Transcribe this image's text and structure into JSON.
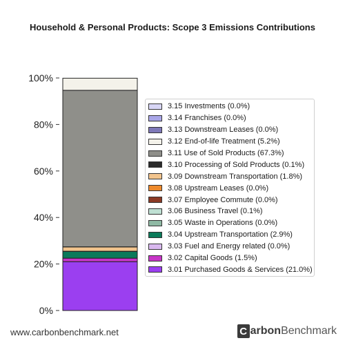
{
  "chart_data": {
    "type": "bar",
    "stacked": true,
    "title": "Household & Personal Products: Scope 3 Emissions Contributions",
    "categories": [
      ""
    ],
    "ylim": [
      0,
      100
    ],
    "yticks": [
      "0%",
      "20%",
      "40%",
      "60%",
      "80%",
      "100%"
    ],
    "legend_position": "right",
    "series": [
      {
        "name": "3.01 Purchased Goods & Services (21.0%)",
        "value": 21.0,
        "color": "#9b3ff0"
      },
      {
        "name": "3.02 Capital Goods (1.5%)",
        "value": 1.5,
        "color": "#c736c7"
      },
      {
        "name": "3.03 Fuel and Energy related (0.0%)",
        "value": 0.0,
        "color": "#d9b8ef"
      },
      {
        "name": "3.04 Upstream Transportation (2.9%)",
        "value": 2.9,
        "color": "#0b7a5a"
      },
      {
        "name": "3.05 Waste in Operations (0.0%)",
        "value": 0.0,
        "color": "#8fb9a4"
      },
      {
        "name": "3.06 Business Travel (0.1%)",
        "value": 0.1,
        "color": "#bfe0d3"
      },
      {
        "name": "3.07 Employee Commute (0.0%)",
        "value": 0.0,
        "color": "#8b3a25"
      },
      {
        "name": "3.08 Upstream Leases (0.0%)",
        "value": 0.0,
        "color": "#ee8a2c"
      },
      {
        "name": "3.09 Downstream Transportation (1.8%)",
        "value": 1.8,
        "color": "#f2c48d"
      },
      {
        "name": "3.10 Processing of Sold Products (0.1%)",
        "value": 0.1,
        "color": "#2a2a2a"
      },
      {
        "name": "3.11 Use of Sold Products (67.3%)",
        "value": 67.3,
        "color": "#8f8f8a"
      },
      {
        "name": "3.12 End-of-life Treatment (5.2%)",
        "value": 5.2,
        "color": "#f4f2ea"
      },
      {
        "name": "3.13 Downstream Leases (0.0%)",
        "value": 0.0,
        "color": "#7e78b8"
      },
      {
        "name": "3.14 Franchises (0.0%)",
        "value": 0.0,
        "color": "#a9a6e8"
      },
      {
        "name": "3.15 Investments (0.0%)",
        "value": 0.0,
        "color": "#d8d6f6"
      }
    ]
  },
  "footer": {
    "url": "www.carbonbenchmark.net",
    "brand_c": "C",
    "brand_carbon": "arbon",
    "brand_bench": "Benchmark"
  }
}
